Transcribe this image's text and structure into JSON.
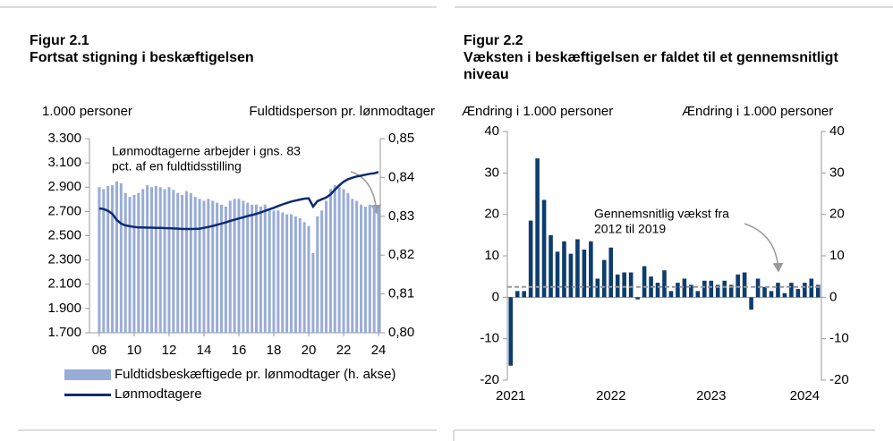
{
  "chart_data": [
    {
      "type": "combo",
      "figure_label": "Figur 2.1",
      "title": "Fortsat stigning i beskæftigelsen",
      "ylabel": "1.000 personer",
      "y2label": "Fuldtidsperson pr. lønmodtager",
      "annotation": [
        "Lønmodtagerne arbejder i gns. 83",
        "pct. af en fuldtidsstilling"
      ],
      "x": [
        8,
        8.25,
        8.5,
        8.75,
        9,
        9.25,
        9.5,
        9.75,
        10,
        10.25,
        10.5,
        10.75,
        11,
        11.25,
        11.5,
        11.75,
        12,
        12.25,
        12.5,
        12.75,
        13,
        13.25,
        13.5,
        13.75,
        14,
        14.25,
        14.5,
        14.75,
        15,
        15.25,
        15.5,
        15.75,
        16,
        16.25,
        16.5,
        16.75,
        17,
        17.25,
        17.5,
        17.75,
        18,
        18.25,
        18.5,
        18.75,
        19,
        19.25,
        19.5,
        19.75,
        20,
        20.25,
        20.5,
        20.75,
        21,
        21.25,
        21.5,
        21.75,
        22,
        22.25,
        22.5,
        22.75,
        23,
        23.25,
        23.5,
        23.75,
        24
      ],
      "xlim": [
        7.44,
        24.1
      ],
      "xticks": [
        {
          "value": 8,
          "label": "08"
        },
        10,
        12,
        14,
        16,
        18,
        20,
        22,
        24
      ],
      "ylim": [
        1700,
        3300
      ],
      "yticks": [
        {
          "value": 1700,
          "label": "1.700"
        },
        {
          "value": 1900,
          "label": "1.900"
        },
        {
          "value": 2100,
          "label": "2.100"
        },
        {
          "value": 2300,
          "label": "2.300"
        },
        {
          "value": 2500,
          "label": "2.500"
        },
        {
          "value": 2700,
          "label": "2.700"
        },
        {
          "value": 2900,
          "label": "2.900"
        },
        {
          "value": 3100,
          "label": "3.100"
        },
        {
          "value": 3300,
          "label": "3.300"
        }
      ],
      "y2lim": [
        0.8,
        0.85
      ],
      "y2ticks": [
        {
          "value": 0.8,
          "label": "0,80"
        },
        {
          "value": 0.81,
          "label": "0,81"
        },
        {
          "value": 0.82,
          "label": "0,82"
        },
        {
          "value": 0.83,
          "label": "0,83"
        },
        {
          "value": 0.84,
          "label": "0,84"
        },
        {
          "value": 0.85,
          "label": "0,85"
        }
      ],
      "series": [
        {
          "name": "Fuldtidsbeskæftigede pr. lønmodtager (h. akse)",
          "type": "bar",
          "axis": "y2",
          "color": "#98acd8",
          "values": [
            0.8375,
            0.837,
            0.8378,
            0.838,
            0.839,
            0.8385,
            0.836,
            0.835,
            0.8355,
            0.836,
            0.837,
            0.838,
            0.8375,
            0.8378,
            0.8375,
            0.837,
            0.8375,
            0.8368,
            0.836,
            0.8355,
            0.8365,
            0.836,
            0.835,
            0.8345,
            0.834,
            0.8345,
            0.834,
            0.8335,
            0.833,
            0.8325,
            0.834,
            0.8345,
            0.8345,
            0.834,
            0.8335,
            0.833,
            0.833,
            0.8325,
            0.833,
            0.832,
            0.8315,
            0.8315,
            0.831,
            0.8305,
            0.8305,
            0.83,
            0.8295,
            0.8285,
            0.8275,
            0.8205,
            0.83,
            0.8315,
            0.834,
            0.837,
            0.838,
            0.8375,
            0.837,
            0.836,
            0.8345,
            0.834,
            0.833,
            0.8325,
            0.833,
            0.8325,
            0.832
          ]
        },
        {
          "name": "Lønmodtagere",
          "type": "line",
          "axis": "y",
          "color": "#0d2b72",
          "values": [
            2725,
            2720,
            2705,
            2680,
            2630,
            2600,
            2585,
            2578,
            2572,
            2568,
            2568,
            2566,
            2566,
            2565,
            2565,
            2563,
            2562,
            2560,
            2558,
            2556,
            2555,
            2555,
            2556,
            2558,
            2565,
            2572,
            2580,
            2590,
            2600,
            2610,
            2622,
            2632,
            2642,
            2652,
            2662,
            2670,
            2680,
            2692,
            2705,
            2718,
            2730,
            2745,
            2758,
            2770,
            2782,
            2790,
            2798,
            2805,
            2808,
            2740,
            2785,
            2800,
            2815,
            2840,
            2880,
            2915,
            2945,
            2965,
            2978,
            2988,
            2995,
            3003,
            3010,
            3015,
            3025
          ]
        }
      ]
    },
    {
      "type": "bar",
      "figure_label": "Figur 2.2",
      "title": "Væksten i beskæftigelsen er faldet til et gennemsnitligt niveau",
      "ylabel": "Ændring i 1.000 personer",
      "y2label": "Ændring i 1.000 personer",
      "annotation": [
        "Gennemsnitlig vækst fra",
        "2012 til 2019"
      ],
      "reference_line": 2.5,
      "categories": [
        "2021",
        null,
        null,
        null,
        null,
        null,
        null,
        null,
        null,
        null,
        null,
        null,
        null,
        null,
        null,
        "2022",
        null,
        null,
        null,
        null,
        null,
        null,
        null,
        null,
        null,
        null,
        null,
        null,
        null,
        null,
        "2023",
        null,
        null,
        null,
        null,
        null,
        null,
        null,
        null,
        null,
        null,
        null,
        null,
        null,
        "2024",
        null,
        null
      ],
      "values": [
        -16.5,
        1.5,
        1.5,
        18.5,
        33.5,
        23.5,
        15,
        11,
        13.5,
        10.5,
        14,
        11.5,
        13.5,
        4.5,
        9,
        12,
        5.5,
        6,
        6,
        -0.5,
        7.5,
        5,
        3.5,
        6.5,
        1.5,
        3.5,
        4.5,
        3,
        1.5,
        4,
        4,
        3,
        4,
        3,
        5.5,
        6,
        -3,
        4.5,
        2.5,
        1.5,
        3.5,
        1,
        3.5,
        2,
        3.5,
        4.5,
        3
      ],
      "color": "#0d3c6e",
      "ylim": [
        -20,
        40
      ],
      "yticks": [
        -20,
        -10,
        0,
        10,
        20,
        30,
        40
      ],
      "y2lim": [
        -20,
        40
      ],
      "y2ticks": [
        -20,
        -10,
        0,
        10,
        20,
        30,
        40
      ]
    }
  ]
}
